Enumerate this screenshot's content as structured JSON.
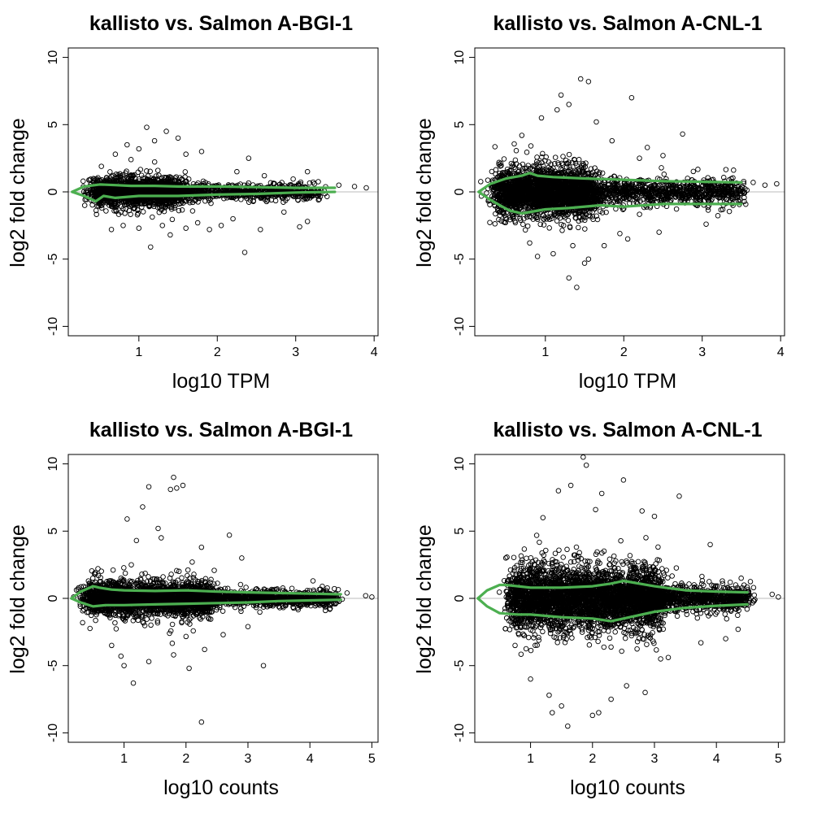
{
  "chart_data": [
    {
      "type": "scatter",
      "title": "kallisto vs. Salmon A-BGI-1",
      "xlabel": "log10 TPM",
      "ylabel": "log2 fold change",
      "xlim": [
        0.1,
        4.05
      ],
      "ylim": [
        -10.7,
        10.7
      ],
      "xticks": [
        1,
        2,
        3,
        4
      ],
      "yticks": [
        -10,
        -5,
        0,
        5,
        10
      ],
      "reference_line_y": 0,
      "reference_line_color": "#bbbbbb",
      "marker": "open-circle",
      "point_color": "#000000",
      "trend_color": "#4caf50",
      "trend_upper": {
        "x": [
          0.15,
          0.3,
          0.5,
          0.7,
          0.9,
          1.2,
          1.5,
          2.0,
          2.5,
          3.0,
          3.5
        ],
        "y": [
          0,
          0.4,
          0.55,
          0.5,
          0.45,
          0.45,
          0.4,
          0.4,
          0.35,
          0.3,
          0.3
        ]
      },
      "trend_lower": {
        "x": [
          0.15,
          0.3,
          0.45,
          0.55,
          0.7,
          1.0,
          1.5,
          2.0,
          2.5,
          3.0,
          3.5
        ],
        "y": [
          0,
          -0.3,
          -0.7,
          -0.3,
          -0.45,
          -0.3,
          -0.3,
          -0.2,
          -0.15,
          -0.05,
          0
        ]
      },
      "points": [
        [
          1.1,
          4.8
        ],
        [
          1.35,
          4.5
        ],
        [
          1.5,
          4.0
        ],
        [
          1.2,
          3.8
        ],
        [
          1.0,
          3.2
        ],
        [
          0.85,
          3.5
        ],
        [
          1.8,
          3.0
        ],
        [
          2.4,
          2.5
        ],
        [
          3.15,
          1.5
        ],
        [
          2.6,
          1.2
        ],
        [
          1.15,
          -4.1
        ],
        [
          2.35,
          -4.5
        ],
        [
          3.05,
          -2.6
        ],
        [
          3.15,
          -2.2
        ],
        [
          2.85,
          -1.5
        ],
        [
          1.0,
          -2.7
        ],
        [
          1.4,
          -3.2
        ],
        [
          1.6,
          -2.7
        ],
        [
          0.8,
          -2.5
        ],
        [
          1.9,
          -2.8
        ],
        [
          2.05,
          -2.5
        ],
        [
          2.55,
          -2.8
        ],
        [
          2.2,
          -2.0
        ],
        [
          0.65,
          -2.8
        ],
        [
          1.3,
          -2.5
        ],
        [
          1.75,
          -2.3
        ],
        [
          2.25,
          1.5
        ],
        [
          0.7,
          2.8
        ],
        [
          0.9,
          2.4
        ],
        [
          1.6,
          2.8
        ],
        [
          3.75,
          0.4
        ],
        [
          3.9,
          0.3
        ],
        [
          3.55,
          0.5
        ]
      ],
      "density": [
        {
          "center": 1.0,
          "spread": 0.55,
          "sd": 0.6,
          "n": 1900
        },
        {
          "center": 2.4,
          "spread": 0.9,
          "sd": 0.35,
          "n": 650
        }
      ]
    },
    {
      "type": "scatter",
      "title": "kallisto vs. Salmon A-CNL-1",
      "xlabel": "log10 TPM",
      "ylabel": "log2 fold change",
      "xlim": [
        0.1,
        4.05
      ],
      "ylim": [
        -10.7,
        10.7
      ],
      "xticks": [
        1,
        2,
        3,
        4
      ],
      "yticks": [
        -10,
        -5,
        0,
        5,
        10
      ],
      "reference_line_y": 0,
      "reference_line_color": "#bbbbbb",
      "marker": "open-circle",
      "point_color": "#000000",
      "trend_color": "#4caf50",
      "trend_upper": {
        "x": [
          0.15,
          0.3,
          0.5,
          0.7,
          0.8,
          0.9,
          1.1,
          1.5,
          2.0,
          2.5,
          3.0,
          3.5
        ],
        "y": [
          0,
          0.6,
          1.0,
          1.2,
          1.4,
          1.2,
          1.1,
          1.0,
          0.9,
          0.8,
          0.75,
          0.7
        ]
      },
      "trend_lower": {
        "x": [
          0.15,
          0.3,
          0.45,
          0.55,
          0.7,
          1.0,
          1.3,
          1.7,
          2.0,
          2.5,
          3.0,
          3.5
        ],
        "y": [
          0,
          -0.6,
          -1.1,
          -1.4,
          -1.6,
          -1.3,
          -1.2,
          -1.0,
          -1.1,
          -0.9,
          -0.9,
          -0.9
        ]
      },
      "points": [
        [
          1.45,
          8.4
        ],
        [
          1.55,
          8.2
        ],
        [
          2.1,
          7.0
        ],
        [
          1.3,
          6.5
        ],
        [
          1.2,
          7.2
        ],
        [
          2.75,
          4.3
        ],
        [
          1.65,
          5.2
        ],
        [
          0.95,
          5.5
        ],
        [
          1.15,
          6.1
        ],
        [
          2.3,
          3.3
        ],
        [
          2.5,
          2.7
        ],
        [
          3.05,
          -2.4
        ],
        [
          1.4,
          -7.1
        ],
        [
          1.3,
          -6.4
        ],
        [
          1.5,
          -5.3
        ],
        [
          1.55,
          -5.0
        ],
        [
          1.1,
          -4.6
        ],
        [
          0.9,
          -4.8
        ],
        [
          1.75,
          -4.0
        ],
        [
          2.05,
          -3.5
        ],
        [
          2.45,
          -3.0
        ],
        [
          1.95,
          -3.1
        ],
        [
          0.8,
          -3.8
        ],
        [
          1.35,
          -4.0
        ],
        [
          2.2,
          2.5
        ],
        [
          1.85,
          3.8
        ],
        [
          0.7,
          4.2
        ],
        [
          3.8,
          0.5
        ],
        [
          3.95,
          0.6
        ],
        [
          3.65,
          0.7
        ]
      ],
      "density": [
        {
          "center": 1.0,
          "spread": 0.6,
          "sd": 1.05,
          "n": 2600
        },
        {
          "center": 2.5,
          "spread": 1.0,
          "sd": 0.6,
          "n": 900
        }
      ]
    },
    {
      "type": "scatter",
      "title": "kallisto vs. Salmon A-BGI-1",
      "xlabel": "log10 counts",
      "ylabel": "log2 fold change",
      "xlim": [
        0.1,
        5.1
      ],
      "ylim": [
        -10.7,
        10.7
      ],
      "xticks": [
        1,
        2,
        3,
        4,
        5
      ],
      "yticks": [
        -10,
        -5,
        0,
        5,
        10
      ],
      "reference_line_y": 0,
      "reference_line_color": "#bbbbbb",
      "marker": "open-circle",
      "point_color": "#000000",
      "trend_color": "#4caf50",
      "trend_upper": {
        "x": [
          0.15,
          0.3,
          0.5,
          0.6,
          0.8,
          1.0,
          1.5,
          2.0,
          2.5,
          3.0,
          3.5,
          4.0,
          4.5
        ],
        "y": [
          0,
          0.5,
          0.9,
          0.8,
          0.65,
          0.6,
          0.55,
          0.6,
          0.5,
          0.45,
          0.4,
          0.35,
          0.3
        ]
      },
      "trend_lower": {
        "x": [
          0.15,
          0.3,
          0.5,
          0.7,
          1.0,
          1.5,
          2.0,
          2.5,
          3.0,
          3.5,
          4.0,
          4.5
        ],
        "y": [
          0,
          -0.3,
          -0.6,
          -0.5,
          -0.5,
          -0.45,
          -0.4,
          -0.35,
          -0.3,
          -0.2,
          -0.15,
          -0.1
        ]
      },
      "points": [
        [
          1.8,
          9.0
        ],
        [
          1.75,
          8.1
        ],
        [
          1.85,
          8.2
        ],
        [
          1.95,
          8.4
        ],
        [
          1.4,
          8.3
        ],
        [
          1.3,
          6.8
        ],
        [
          1.05,
          5.9
        ],
        [
          1.55,
          5.2
        ],
        [
          2.7,
          4.7
        ],
        [
          1.6,
          4.5
        ],
        [
          1.2,
          4.3
        ],
        [
          2.25,
          3.8
        ],
        [
          2.9,
          3.0
        ],
        [
          2.1,
          2.7
        ],
        [
          3.25,
          -5.0
        ],
        [
          2.05,
          -5.2
        ],
        [
          1.15,
          -6.3
        ],
        [
          2.25,
          -9.2
        ],
        [
          1.0,
          -5.0
        ],
        [
          0.95,
          -4.3
        ],
        [
          1.8,
          -4.2
        ],
        [
          2.3,
          -3.8
        ],
        [
          1.4,
          -4.7
        ],
        [
          0.8,
          -3.5
        ],
        [
          2.6,
          -2.7
        ],
        [
          3.0,
          -2.1
        ],
        [
          4.05,
          1.3
        ],
        [
          4.2,
          0.9
        ],
        [
          4.6,
          0.4
        ],
        [
          4.9,
          0.2
        ],
        [
          5.0,
          0.1
        ]
      ],
      "density": [
        {
          "center": 1.4,
          "spread": 1.0,
          "sd": 0.75,
          "n": 2400
        },
        {
          "center": 3.3,
          "spread": 1.1,
          "sd": 0.35,
          "n": 900
        }
      ]
    },
    {
      "type": "scatter",
      "title": "kallisto vs. Salmon A-CNL-1",
      "xlabel": "log10 counts",
      "ylabel": "log2 fold change",
      "xlim": [
        0.1,
        5.1
      ],
      "ylim": [
        -10.7,
        10.7
      ],
      "xticks": [
        1,
        2,
        3,
        4,
        5
      ],
      "yticks": [
        -10,
        -5,
        0,
        5,
        10
      ],
      "reference_line_y": 0,
      "reference_line_color": "#bbbbbb",
      "marker": "open-circle",
      "point_color": "#000000",
      "trend_color": "#4caf50",
      "trend_upper": {
        "x": [
          0.15,
          0.3,
          0.5,
          0.6,
          0.8,
          1.0,
          1.5,
          2.0,
          2.3,
          2.5,
          3.0,
          3.5,
          4.0,
          4.5
        ],
        "y": [
          0,
          0.6,
          1.0,
          1.0,
          0.9,
          0.8,
          0.8,
          0.9,
          1.1,
          1.3,
          0.9,
          0.6,
          0.5,
          0.45
        ]
      },
      "trend_lower": {
        "x": [
          0.15,
          0.3,
          0.5,
          0.8,
          1.0,
          1.5,
          2.0,
          2.3,
          2.5,
          3.0,
          3.5,
          4.0,
          4.5
        ],
        "y": [
          0,
          -0.6,
          -1.1,
          -1.2,
          -1.2,
          -1.4,
          -1.5,
          -1.7,
          -1.5,
          -1.0,
          -0.7,
          -0.55,
          -0.45
        ]
      },
      "points": [
        [
          1.85,
          10.5
        ],
        [
          1.9,
          9.9
        ],
        [
          1.65,
          8.4
        ],
        [
          2.5,
          8.8
        ],
        [
          1.45,
          8.0
        ],
        [
          2.15,
          7.8
        ],
        [
          3.4,
          7.6
        ],
        [
          2.8,
          6.5
        ],
        [
          1.2,
          6.0
        ],
        [
          2.05,
          6.6
        ],
        [
          3.0,
          6.1
        ],
        [
          3.9,
          4.0
        ],
        [
          1.6,
          -9.5
        ],
        [
          1.35,
          -8.5
        ],
        [
          2.0,
          -8.7
        ],
        [
          2.1,
          -8.5
        ],
        [
          1.5,
          -8.0
        ],
        [
          1.3,
          -7.2
        ],
        [
          2.3,
          -7.5
        ],
        [
          2.85,
          -7.0
        ],
        [
          1.0,
          -6.0
        ],
        [
          2.55,
          -6.5
        ],
        [
          3.1,
          -4.5
        ],
        [
          3.75,
          -3.3
        ],
        [
          4.15,
          -3.0
        ],
        [
          4.35,
          -2.3
        ],
        [
          0.75,
          -3.5
        ],
        [
          4.4,
          1.5
        ],
        [
          4.6,
          0.8
        ],
        [
          4.9,
          0.3
        ],
        [
          5.0,
          0.1
        ],
        [
          0.6,
          3.0
        ]
      ],
      "density": [
        {
          "center": 1.9,
          "spread": 1.2,
          "sd": 1.35,
          "n": 3600
        },
        {
          "center": 3.6,
          "spread": 0.9,
          "sd": 0.55,
          "n": 900
        }
      ]
    }
  ]
}
